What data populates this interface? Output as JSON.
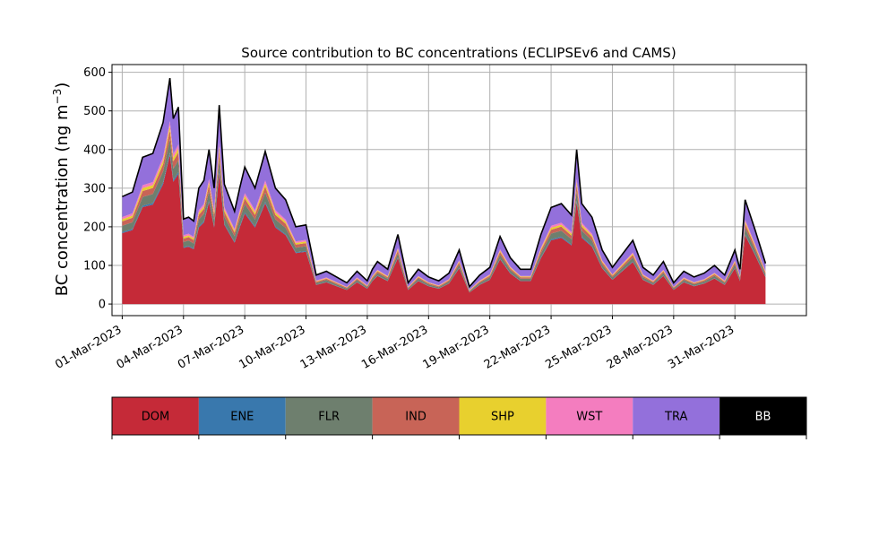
{
  "chart_data": {
    "type": "area",
    "title": "Source contribution to BC concentrations (ECLIPSEv6 and CAMS)",
    "xlabel": "",
    "ylabel": "BC concentration (ng m",
    "ylabel_sup": "−3",
    "ylabel_close": ")",
    "ylim": [
      -30,
      620
    ],
    "yticks": [
      0,
      100,
      200,
      300,
      400,
      500,
      600
    ],
    "grid": true,
    "x_start": "01-Mar-2023",
    "x_end": "01-Apr-2023",
    "xticks": [
      "01-Mar-2023",
      "04-Mar-2023",
      "07-Mar-2023",
      "10-Mar-2023",
      "13-Mar-2023",
      "16-Mar-2023",
      "19-Mar-2023",
      "22-Mar-2023",
      "25-Mar-2023",
      "28-Mar-2023",
      "31-Mar-2023"
    ],
    "legend_position": "below",
    "total": {
      "x": [
        "2023-03-01 00:00",
        "2023-03-01 12:00",
        "2023-03-02 00:00",
        "2023-03-02 12:00",
        "2023-03-03 00:00",
        "2023-03-03 08:00",
        "2023-03-03 12:00",
        "2023-03-03 18:00",
        "2023-03-04 00:00",
        "2023-03-04 06:00",
        "2023-03-04 12:00",
        "2023-03-04 18:00",
        "2023-03-05 00:00",
        "2023-03-05 06:00",
        "2023-03-05 12:00",
        "2023-03-05 18:00",
        "2023-03-06 00:00",
        "2023-03-06 12:00",
        "2023-03-06 18:00",
        "2023-03-07 00:00",
        "2023-03-07 12:00",
        "2023-03-08 00:00",
        "2023-03-08 12:00",
        "2023-03-09 00:00",
        "2023-03-09 12:00",
        "2023-03-10 00:00",
        "2023-03-10 12:00",
        "2023-03-11 00:00",
        "2023-03-11 12:00",
        "2023-03-12 00:00",
        "2023-03-12 12:00",
        "2023-03-13 00:00",
        "2023-03-13 06:00",
        "2023-03-13 12:00",
        "2023-03-14 00:00",
        "2023-03-14 12:00",
        "2023-03-15 00:00",
        "2023-03-15 12:00",
        "2023-03-16 00:00",
        "2023-03-16 12:00",
        "2023-03-17 00:00",
        "2023-03-17 12:00",
        "2023-03-18 00:00",
        "2023-03-18 12:00",
        "2023-03-19 00:00",
        "2023-03-19 12:00",
        "2023-03-20 00:00",
        "2023-03-20 12:00",
        "2023-03-21 00:00",
        "2023-03-21 12:00",
        "2023-03-22 00:00",
        "2023-03-22 12:00",
        "2023-03-23 00:00",
        "2023-03-23 06:00",
        "2023-03-23 12:00",
        "2023-03-24 00:00",
        "2023-03-24 12:00",
        "2023-03-25 00:00",
        "2023-03-25 12:00",
        "2023-03-26 00:00",
        "2023-03-26 12:00",
        "2023-03-27 00:00",
        "2023-03-27 12:00",
        "2023-03-28 00:00",
        "2023-03-28 12:00",
        "2023-03-29 00:00",
        "2023-03-29 12:00",
        "2023-03-30 00:00",
        "2023-03-30 12:00",
        "2023-03-31 00:00",
        "2023-03-31 06:00",
        "2023-03-31 12:00",
        "2023-04-01 00:00",
        "2023-04-01 12:00"
      ],
      "values": [
        278,
        290,
        380,
        390,
        470,
        585,
        480,
        510,
        220,
        225,
        215,
        300,
        320,
        400,
        300,
        515,
        310,
        240,
        300,
        355,
        300,
        395,
        300,
        270,
        200,
        205,
        75,
        85,
        70,
        55,
        85,
        60,
        90,
        110,
        90,
        180,
        55,
        90,
        70,
        60,
        80,
        140,
        45,
        75,
        95,
        175,
        120,
        90,
        90,
        180,
        250,
        260,
        230,
        400,
        260,
        225,
        140,
        95,
        130,
        165,
        95,
        75,
        110,
        55,
        85,
        70,
        80,
        100,
        75,
        140,
        90,
        270,
        190,
        105
      ]
    },
    "categories": [
      "DOM",
      "ENE",
      "FLR",
      "IND",
      "SHP",
      "WST",
      "TRA",
      "BB"
    ],
    "colors": [
      "#c52a38",
      "#3978ad",
      "#6e7f6e",
      "#c86457",
      "#e8d02e",
      "#f47dbf",
      "#9370db",
      "#000000"
    ],
    "fractions": {
      "DOM": 0.66,
      "ENE": 0.01,
      "FLR": 0.06,
      "IND": 0.04,
      "SHP": 0.02,
      "WST": 0.02,
      "TRA": 0.19,
      "BB": 0.0
    }
  }
}
